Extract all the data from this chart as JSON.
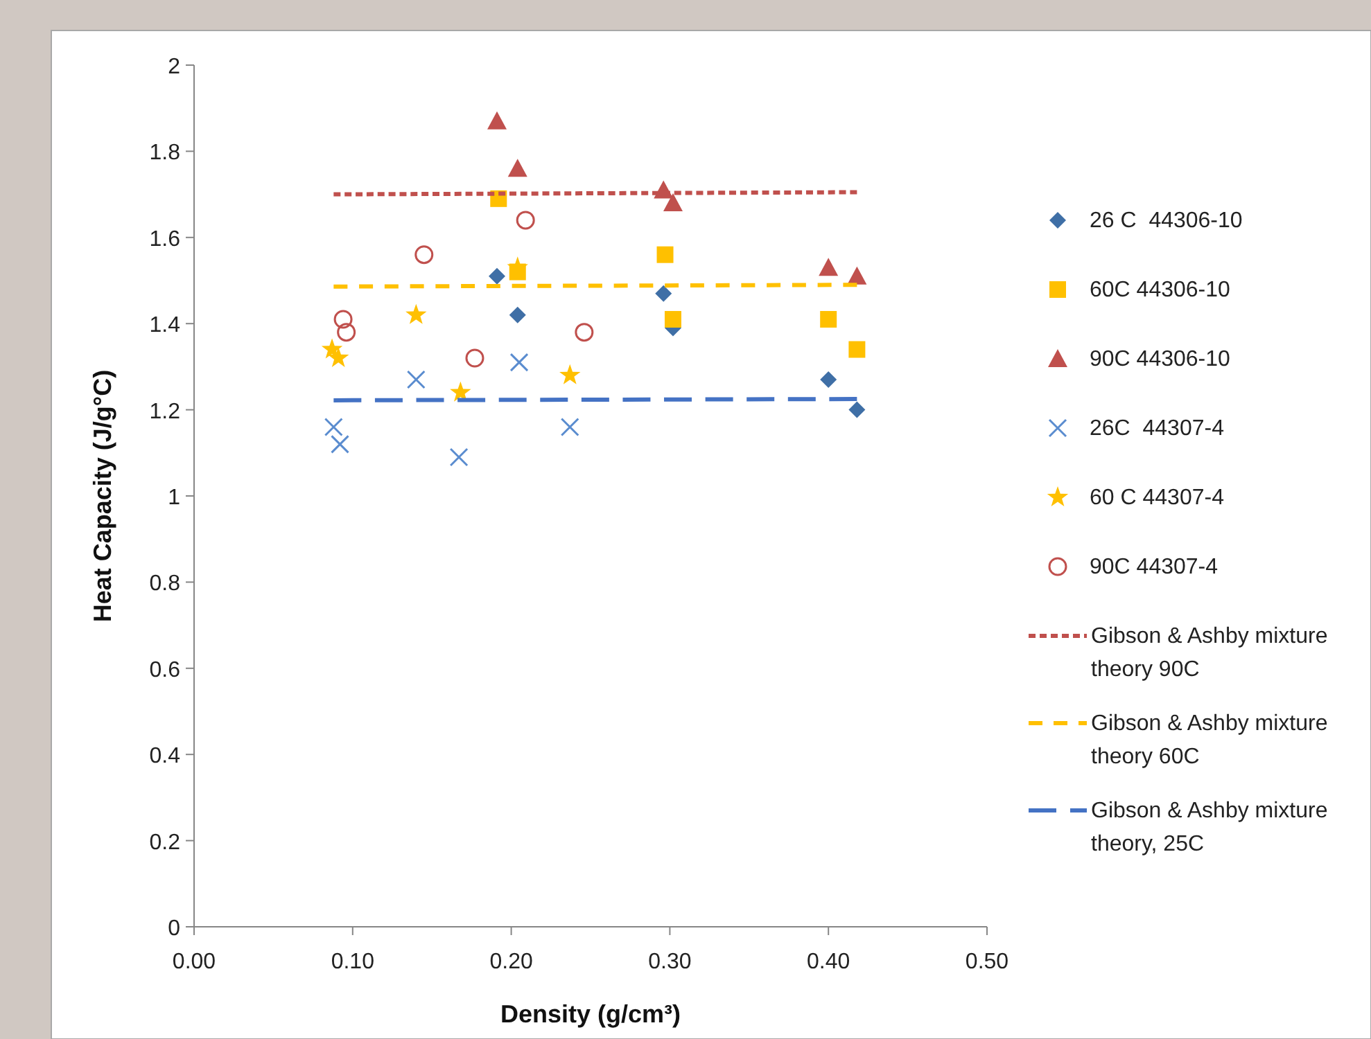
{
  "chart_data": {
    "type": "scatter",
    "xlabel": "Density (g/cm³)",
    "ylabel": "Heat Capacity (J/g°C)",
    "xlim": [
      0,
      0.5
    ],
    "xticks": [
      {
        "value": 0,
        "label": "0.00"
      },
      {
        "value": 0.1,
        "label": "0.10"
      },
      {
        "value": 0.2,
        "label": "0.20"
      },
      {
        "value": 0.3,
        "label": "0.30"
      },
      {
        "value": 0.4,
        "label": "0.40"
      },
      {
        "value": 0.5,
        "label": "0.50"
      }
    ],
    "ylim": [
      0,
      2
    ],
    "yticks": [
      0,
      0.2,
      0.4,
      0.6,
      0.8,
      1,
      1.2,
      1.4,
      1.6,
      1.8,
      2
    ],
    "grid": false,
    "legend": "right",
    "series": [
      {
        "name": "26 C  44306-10",
        "color": "#3f6fa6",
        "marker": "diamond",
        "x": [
          0.191,
          0.204,
          0.296,
          0.302,
          0.4,
          0.418
        ],
        "values": [
          1.51,
          1.42,
          1.47,
          1.39,
          1.27,
          1.2
        ]
      },
      {
        "name": "60C 44306-10",
        "color": "#ffc000",
        "marker": "square",
        "x": [
          0.192,
          0.204,
          0.297,
          0.302,
          0.4,
          0.418
        ],
        "values": [
          1.69,
          1.52,
          1.56,
          1.41,
          1.41,
          1.34
        ]
      },
      {
        "name": "90C 44306-10",
        "color": "#c0504d",
        "marker": "triangle",
        "x": [
          0.191,
          0.204,
          0.296,
          0.302,
          0.4,
          0.418
        ],
        "values": [
          1.87,
          1.76,
          1.71,
          1.68,
          1.53,
          1.51
        ]
      },
      {
        "name": "26C  44307-4",
        "color": "#5a8ccf",
        "marker": "cross",
        "x": [
          0.088,
          0.092,
          0.14,
          0.167,
          0.205,
          0.237
        ],
        "values": [
          1.16,
          1.12,
          1.27,
          1.09,
          1.31,
          1.16
        ]
      },
      {
        "name": "60 C 44307-4",
        "color": "#ffc000",
        "marker": "star",
        "x": [
          0.087,
          0.091,
          0.14,
          0.168,
          0.204,
          0.237
        ],
        "values": [
          1.34,
          1.32,
          1.42,
          1.24,
          1.53,
          1.28
        ]
      },
      {
        "name": "90C 44307-4",
        "color": "#c0504d",
        "marker": "circle",
        "x": [
          0.094,
          0.096,
          0.145,
          0.177,
          0.209,
          0.246
        ],
        "values": [
          1.41,
          1.38,
          1.56,
          1.32,
          1.64,
          1.38
        ]
      },
      {
        "name": "Gibson & Ashby mixture theory 90C",
        "type": "line",
        "color": "#c0504d",
        "line_style": "dotted",
        "marker": "none",
        "x": [
          0.088,
          0.418
        ],
        "values": [
          1.7,
          1.705
        ]
      },
      {
        "name": "Gibson & Ashby mixture theory 60C",
        "type": "line",
        "color": "#ffc000",
        "line_style": "dashed",
        "marker": "none",
        "x": [
          0.088,
          0.418
        ],
        "values": [
          1.486,
          1.49
        ]
      },
      {
        "name": "Gibson & Ashby mixture theory, 25C",
        "type": "line",
        "color": "#4472c4",
        "line_style": "longdash",
        "marker": "none",
        "x": [
          0.088,
          0.418
        ],
        "values": [
          1.222,
          1.225
        ]
      }
    ]
  }
}
